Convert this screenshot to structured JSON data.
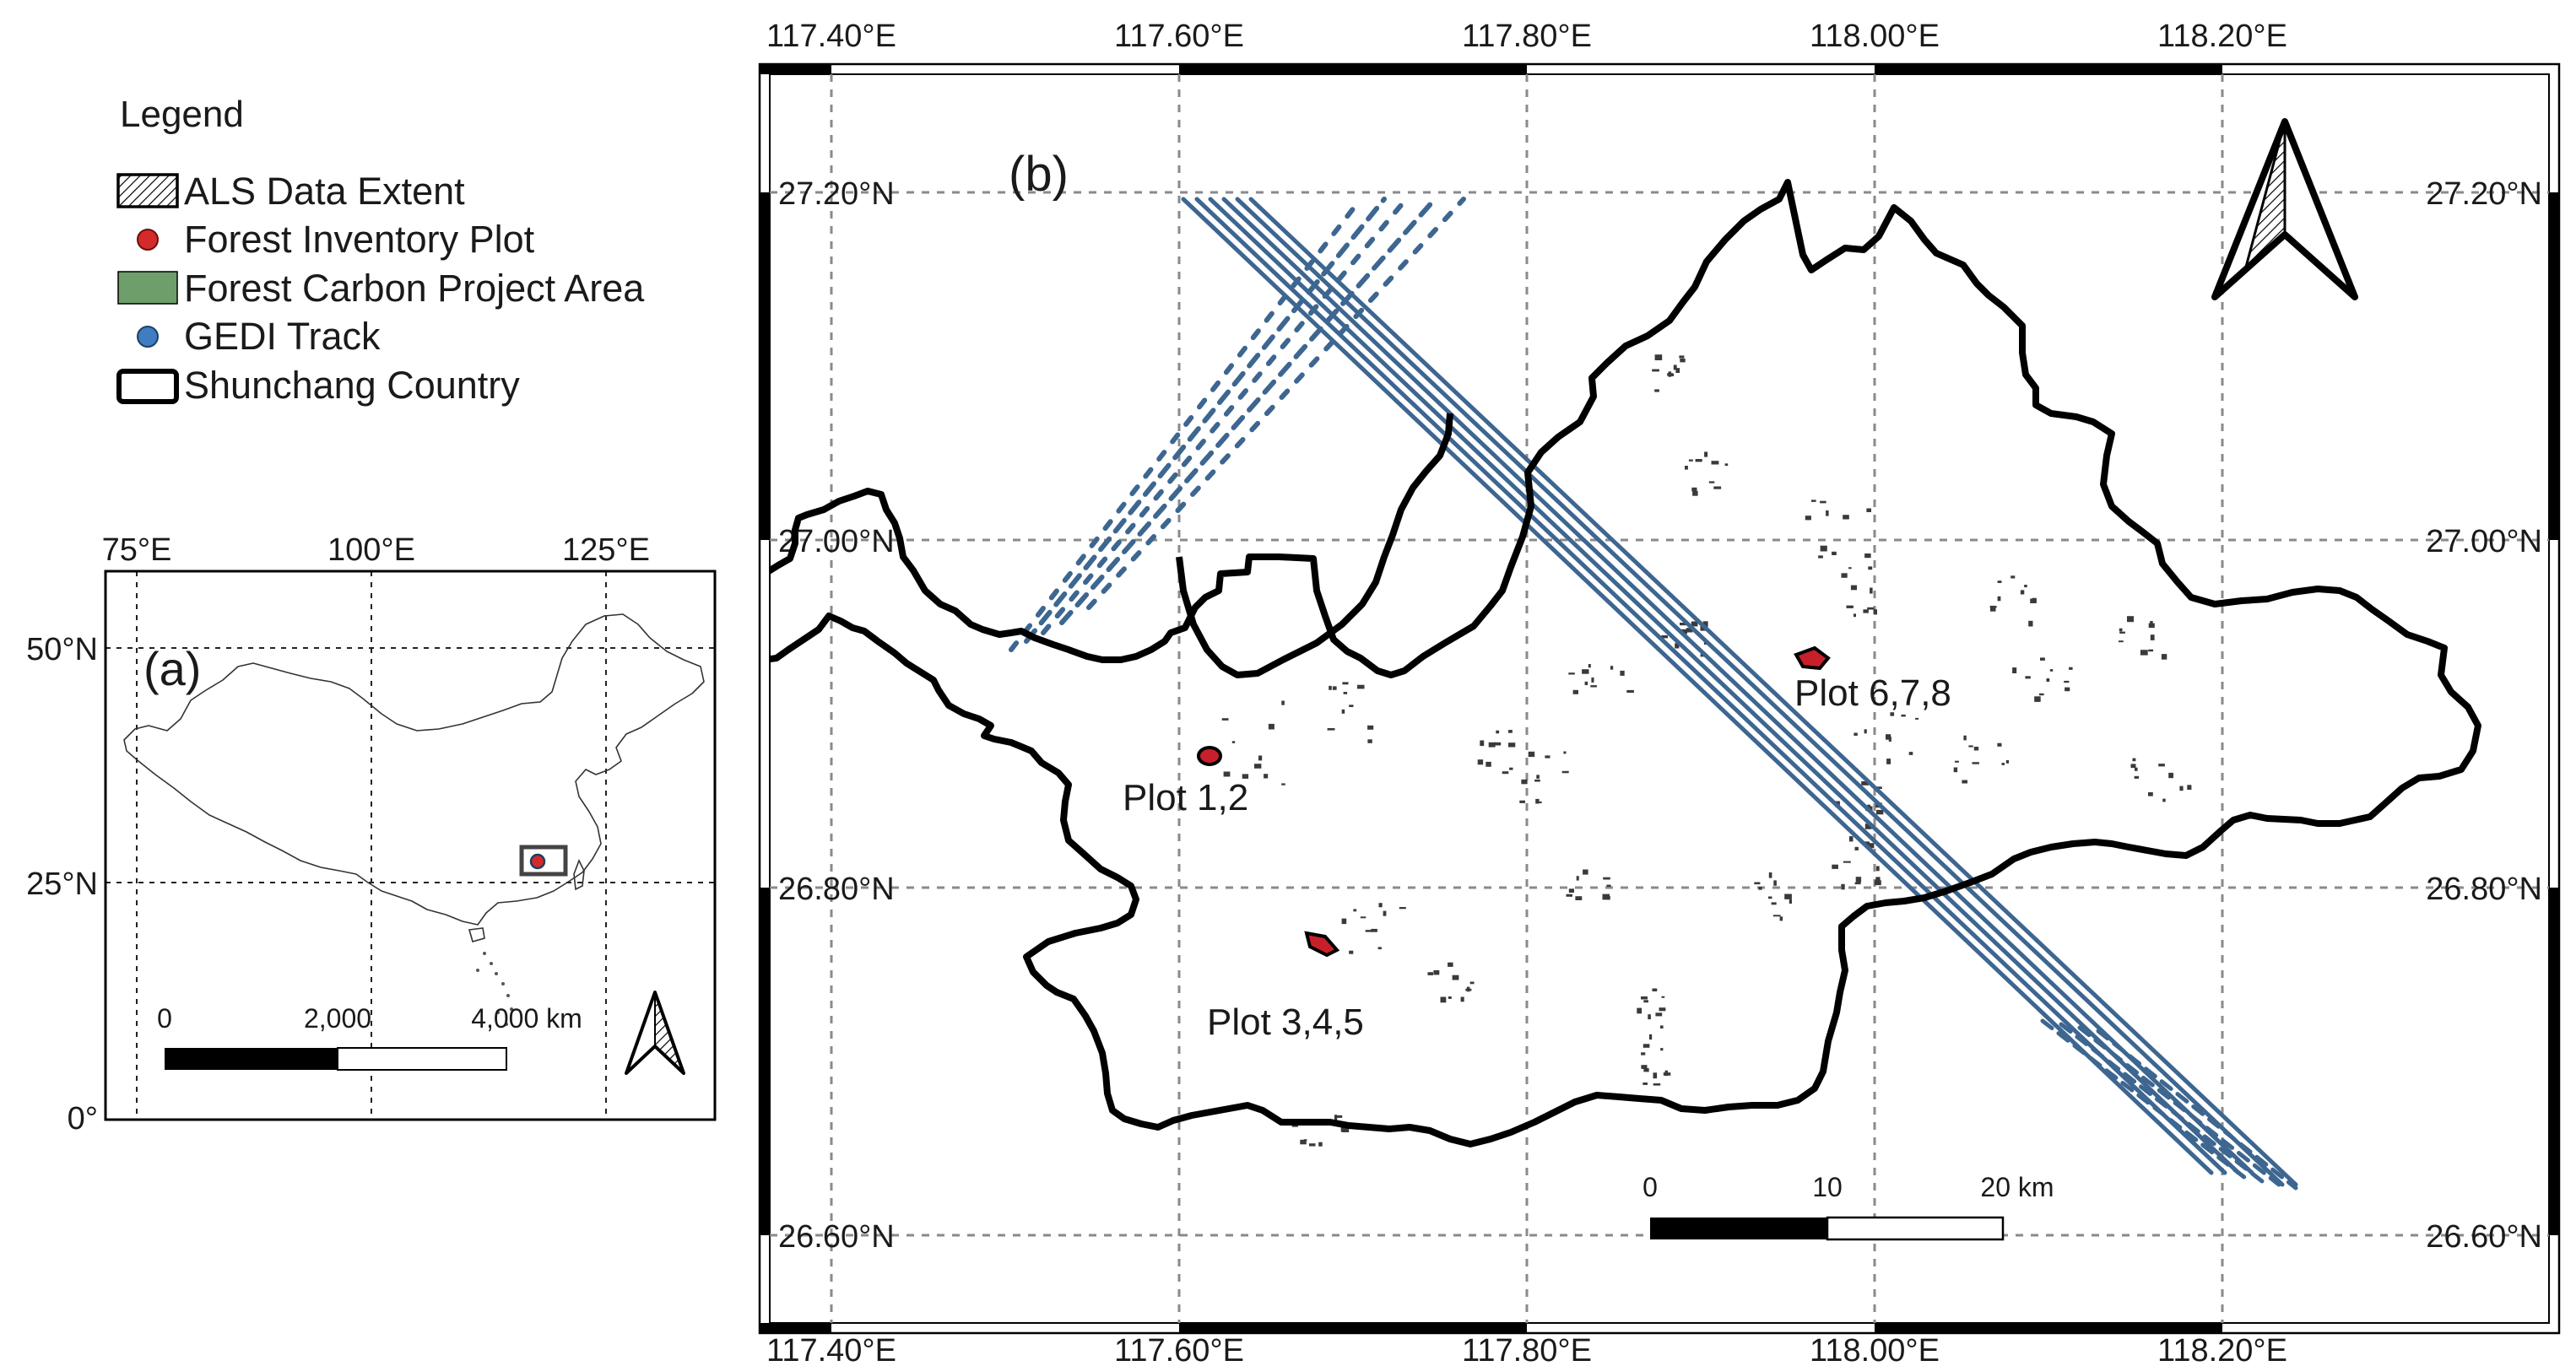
{
  "legend": {
    "title": "Legend",
    "items": [
      {
        "label": "ALS Data Extent",
        "icon": "hatched-rectangle-icon"
      },
      {
        "label": "Forest Inventory  Plot",
        "icon": "red-dot-icon",
        "color": "#d42a2a"
      },
      {
        "label": "Forest Carbon Project Area",
        "icon": "green-rectangle-icon",
        "color": "#6e9e6a"
      },
      {
        "label": "GEDI Track",
        "icon": "blue-dot-icon",
        "color": "#3f7cc0"
      },
      {
        "label": "Shunchang Country",
        "icon": "black-outline-rectangle-icon"
      }
    ]
  },
  "inset_map": {
    "panel_label": "(a)",
    "lon_ticks": [
      "75°E",
      "100°E",
      "125°E"
    ],
    "lat_ticks": [
      "50°N",
      "25°N",
      "0°"
    ],
    "scale_bar": {
      "labels": [
        "0",
        "2,000",
        "4,000 km"
      ]
    }
  },
  "main_map": {
    "panel_label": "(b)",
    "lon_ticks": [
      "117.40°E",
      "117.60°E",
      "117.80°E",
      "118.00°E",
      "118.20°E"
    ],
    "lat_ticks": [
      "27.20°N",
      "27.00°N",
      "26.80°N",
      "26.60°N"
    ],
    "plot_labels": [
      "Plot 1,2",
      "Plot 3,4,5",
      "Plot 6,7,8"
    ],
    "scale_bar": {
      "labels": [
        "0",
        "10",
        "20 km"
      ]
    },
    "colors": {
      "gedi_track": "#3d6690",
      "plot": "#c8202a",
      "boundary": "#000000",
      "project_area": "#3a3a3a"
    }
  }
}
